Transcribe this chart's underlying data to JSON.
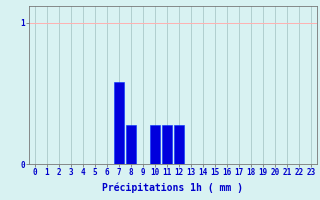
{
  "categories": [
    0,
    1,
    2,
    3,
    4,
    5,
    6,
    7,
    8,
    9,
    10,
    11,
    12,
    13,
    14,
    15,
    16,
    17,
    18,
    19,
    20,
    21,
    22,
    23
  ],
  "values": [
    0,
    0,
    0,
    0,
    0,
    0,
    0,
    0.58,
    0.28,
    0,
    0.28,
    0.28,
    0.28,
    0,
    0,
    0,
    0,
    0,
    0,
    0,
    0,
    0,
    0,
    0
  ],
  "bar_color": "#0000dd",
  "bar_edge_color": "#0033ff",
  "background_color": "#d8f2f2",
  "grid_color_h": "#ffb0b0",
  "grid_color_v": "#b0cece",
  "xlabel": "Précipitations 1h ( mm )",
  "xlabel_color": "#0000cc",
  "xlabel_fontsize": 7,
  "tick_label_color": "#0000cc",
  "tick_fontsize": 5.5,
  "ytick_labels": [
    "0",
    "1"
  ],
  "ytick_values": [
    0,
    1
  ],
  "ylim": [
    0,
    1.12
  ],
  "xlim": [
    -0.5,
    23.5
  ]
}
